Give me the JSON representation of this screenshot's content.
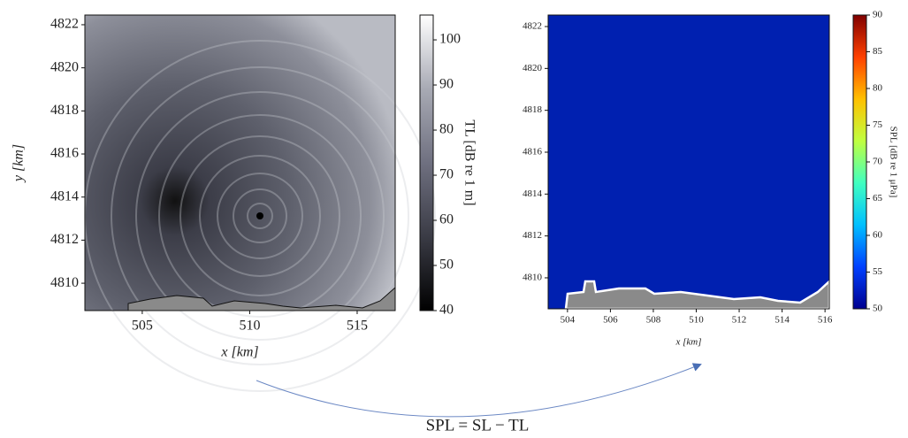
{
  "chart_data": [
    {
      "type": "heatmap",
      "xlabel": "x [km]",
      "ylabel": "y [km]",
      "xlim": [
        502.33,
        516.77
      ],
      "ylim": [
        4808.73,
        4822.45
      ],
      "xticks": [
        505,
        510,
        515
      ],
      "yticks": [
        4810,
        4812,
        4814,
        4816,
        4818,
        4820,
        4822
      ],
      "colorbar": {
        "label": "TL [dB re 1 m]",
        "lim": [
          40,
          105.5
        ],
        "ticks": [
          40,
          50,
          60,
          70,
          80,
          90,
          100
        ],
        "colormap": [
          "#000000",
          "#3a3b45",
          "#6f7080",
          "#a8aab4",
          "#ffffff"
        ]
      }
    },
    {
      "type": "heatmap",
      "xlabel": "x [km]",
      "xlim": [
        503.1,
        516.2
      ],
      "ylim": [
        4808.52,
        4822.55
      ],
      "xticks": [
        504,
        506,
        508,
        510,
        512,
        514,
        516
      ],
      "yticks": [
        4810,
        4812,
        4814,
        4816,
        4818,
        4820,
        4822
      ],
      "colorbar": {
        "label": "SPL [dB re 1 μPa]",
        "lim": [
          50,
          90
        ],
        "ticks": [
          50,
          55,
          60,
          65,
          70,
          75,
          80,
          85,
          90
        ],
        "colormap": [
          "#00008f",
          "#0040ff",
          "#00c0ff",
          "#40ffc0",
          "#c0ff40",
          "#ffc000",
          "#ff4000",
          "#800000"
        ]
      }
    }
  ],
  "annotation": "SPL = SL − TL"
}
